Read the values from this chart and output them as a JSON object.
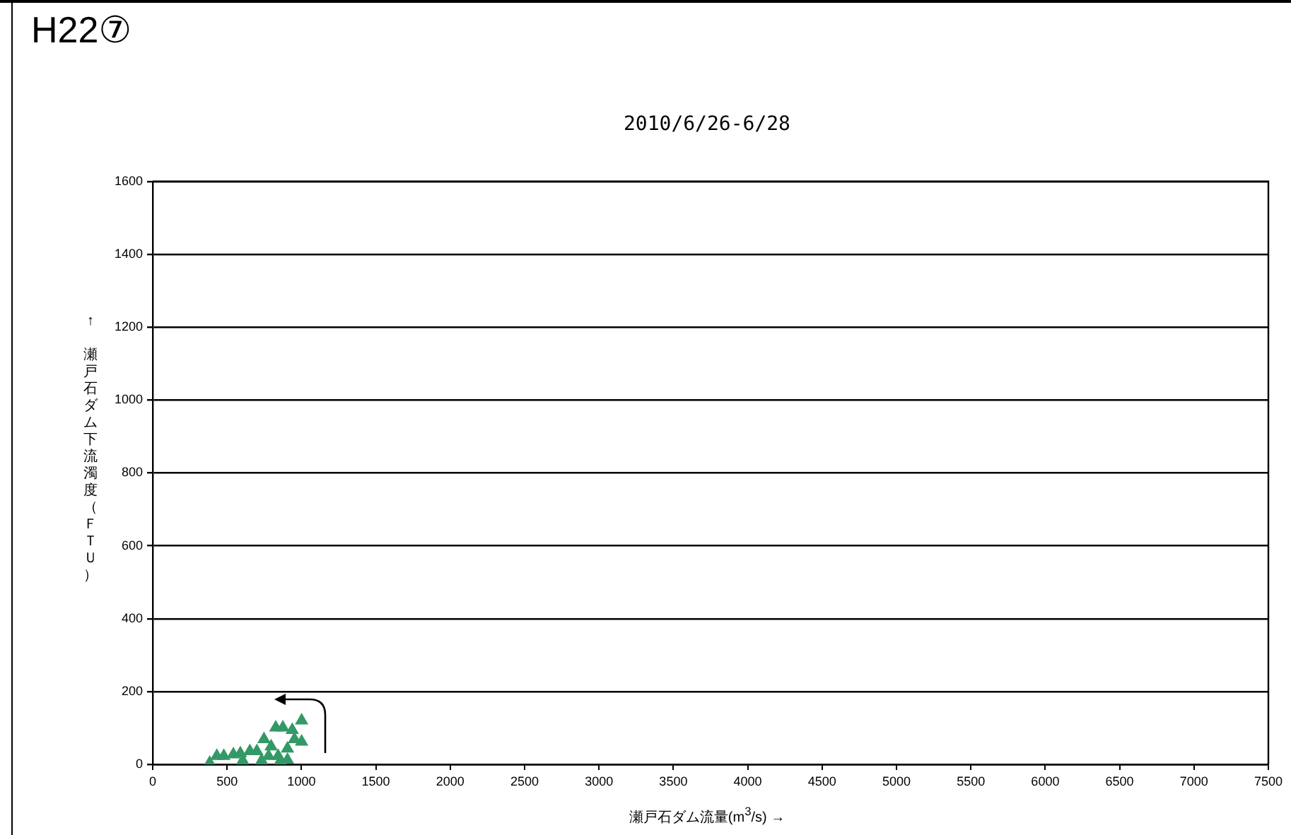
{
  "chart_data": {
    "type": "scatter",
    "title": "H22⑦",
    "subtitle": "2010/6/26-6/28",
    "xlabel": "瀬戸石ダム流量(m$^{3}$/s) →",
    "ylabel": "↑ 瀬戸石ダム下流濁度（ＦＴＵ）",
    "x": [
      383,
      431,
      478,
      542,
      589,
      605,
      653,
      700,
      732,
      748,
      779,
      796,
      827,
      843,
      859,
      875,
      906,
      906,
      938,
      953,
      1001,
      1001
    ],
    "series": [
      {
        "color": "#339966",
        "values": [
          4,
          23,
          23,
          27,
          30,
          10,
          36,
          36,
          10,
          69,
          23,
          49,
          101,
          23,
          10,
          101,
          43,
          12,
          94,
          69,
          120,
          62
        ]
      }
    ],
    "xlim": [
      0,
      7500
    ],
    "xticks": [
      0,
      500,
      1000,
      1500,
      2000,
      2500,
      3000,
      3500,
      4000,
      4500,
      5000,
      5500,
      6000,
      6500,
      7000,
      7500
    ],
    "ylim": [
      0,
      1600
    ],
    "yticks": [
      0,
      200,
      400,
      600,
      800,
      1000,
      1200,
      1400,
      1600
    ],
    "grid": "y",
    "legend": false,
    "marker": "triangle"
  }
}
